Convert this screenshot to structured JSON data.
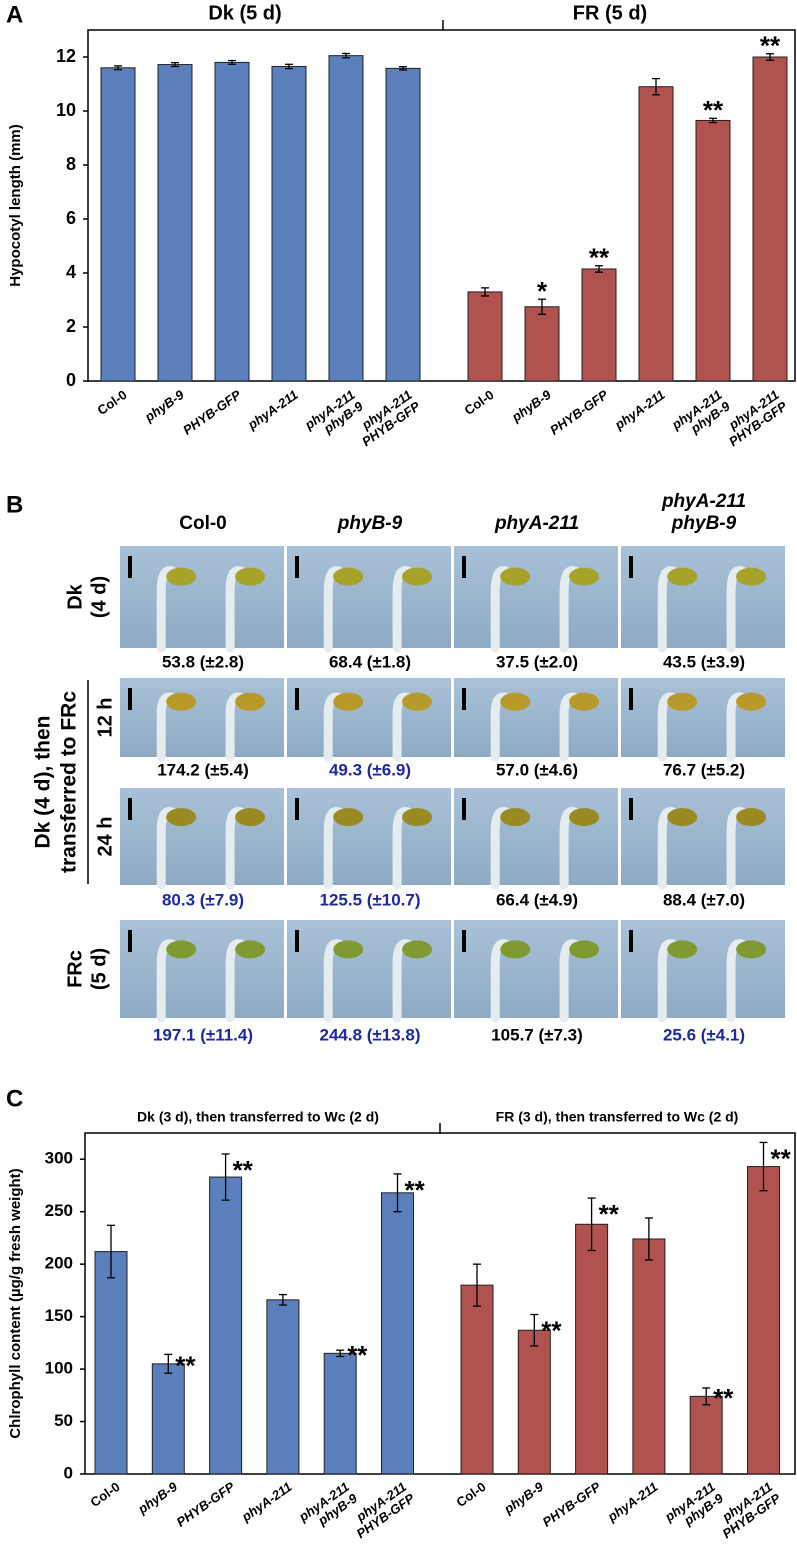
{
  "chart_data": [
    {
      "type": "bar",
      "panel_label": "A",
      "ylabel": "Hypocotyl length (mm)",
      "ylim": [
        0,
        13
      ],
      "yticks": [
        0,
        2,
        4,
        6,
        8,
        10,
        12
      ],
      "groups": [
        {
          "name": "Dk (5 d)",
          "color": "#5b7fbd",
          "categories": [
            [
              "Col-0"
            ],
            [
              "phyB-9"
            ],
            [
              "PHYB-GFP"
            ],
            [
              "phyA-211"
            ],
            [
              "phyA-211",
              "phyB-9"
            ],
            [
              "phyA-211",
              "PHYB-GFP"
            ]
          ],
          "italic": [
            false,
            true,
            true,
            true,
            true,
            true
          ],
          "values": [
            11.6,
            11.72,
            11.8,
            11.65,
            12.05,
            11.58
          ],
          "errors": [
            0.07,
            0.07,
            0.07,
            0.08,
            0.08,
            0.06
          ],
          "annotations": [
            null,
            null,
            null,
            null,
            null,
            null
          ]
        },
        {
          "name": "FR (5 d)",
          "color": "#b0524f",
          "categories": [
            [
              "Col-0"
            ],
            [
              "phyB-9"
            ],
            [
              "PHYB-GFP"
            ],
            [
              "phyA-211"
            ],
            [
              "phyA-211",
              "phyB-9"
            ],
            [
              "phyA-211",
              "PHYB-GFP"
            ]
          ],
          "italic": [
            false,
            true,
            true,
            true,
            true,
            true
          ],
          "values": [
            3.3,
            2.75,
            4.15,
            10.9,
            9.65,
            12.0
          ],
          "errors": [
            0.15,
            0.28,
            0.12,
            0.3,
            0.08,
            0.12
          ],
          "annotations": [
            null,
            "*",
            "**",
            null,
            "**",
            "**"
          ]
        }
      ]
    },
    {
      "type": "bar",
      "panel_label": "C",
      "ylabel": "Chlrophyll content (µg/g fresh weight)",
      "ylim": [
        0,
        325
      ],
      "yticks": [
        0,
        50,
        100,
        150,
        200,
        250,
        300
      ],
      "groups": [
        {
          "name": "Dk (3 d), then transferred to Wc (2 d)",
          "color": "#5b7fbd",
          "categories": [
            [
              "Col-0"
            ],
            [
              "phyB-9"
            ],
            [
              "PHYB-GFP"
            ],
            [
              "phyA-211"
            ],
            [
              "phyA-211",
              "phyB-9"
            ],
            [
              "phyA-211",
              "PHYB-GFP"
            ]
          ],
          "italic": [
            false,
            true,
            true,
            true,
            true,
            true
          ],
          "values": [
            212,
            105,
            283,
            166,
            115,
            268
          ],
          "errors": [
            25,
            9,
            22,
            5,
            3,
            18
          ],
          "annotations": [
            null,
            "**",
            "**",
            null,
            "**",
            "**"
          ]
        },
        {
          "name": "FR (3 d), then transferred to Wc (2 d)",
          "color": "#b0524f",
          "categories": [
            [
              "Col-0"
            ],
            [
              "phyB-9"
            ],
            [
              "PHYB-GFP"
            ],
            [
              "phyA-211"
            ],
            [
              "phyA-211",
              "phyB-9"
            ],
            [
              "phyA-211",
              "PHYB-GFP"
            ]
          ],
          "italic": [
            false,
            true,
            true,
            true,
            true,
            true
          ],
          "values": [
            180,
            137,
            238,
            224,
            74,
            293
          ],
          "errors": [
            20,
            15,
            25,
            20,
            8,
            23
          ],
          "annotations": [
            null,
            "**",
            "**",
            null,
            "**",
            "**"
          ]
        }
      ]
    }
  ],
  "photo_panel": {
    "panel_label": "B",
    "columns": [
      [
        "Col-0"
      ],
      [
        "phyB-9"
      ],
      [
        "phyA-211"
      ],
      [
        "phyA-211",
        "phyB-9"
      ]
    ],
    "column_italic": [
      false,
      true,
      true,
      true
    ],
    "side_label": [
      "Dk (4 d), then",
      "transferred to FRc"
    ],
    "highlight_color": "#1f2a9e",
    "rows": [
      {
        "label": [
          "Dk",
          "(4 d)"
        ],
        "values": [
          "53.8 (±2.8)",
          "68.4 (±1.8)",
          "37.5 (±2.0)",
          "43.5 (±3.9)"
        ],
        "highlight": [
          false,
          false,
          false,
          false
        ]
      },
      {
        "label": [
          "12 h"
        ],
        "values": [
          "174.2 (±5.4)",
          "49.3 (±6.9)",
          "57.0 (±4.6)",
          "76.7 (±5.2)"
        ],
        "highlight": [
          false,
          true,
          false,
          false
        ]
      },
      {
        "label": [
          "24 h"
        ],
        "values": [
          "80.3 (±7.9)",
          "125.5 (±10.7)",
          "66.4 (±4.9)",
          "88.4 (±7.0)"
        ],
        "highlight": [
          true,
          true,
          false,
          false
        ]
      },
      {
        "label": [
          "FRc",
          "(5 d)"
        ],
        "values": [
          "197.1 (±11.4)",
          "244.8 (±13.8)",
          "105.7 (±7.3)",
          "25.6 (±4.1)"
        ],
        "highlight": [
          true,
          true,
          false,
          true
        ]
      }
    ]
  }
}
